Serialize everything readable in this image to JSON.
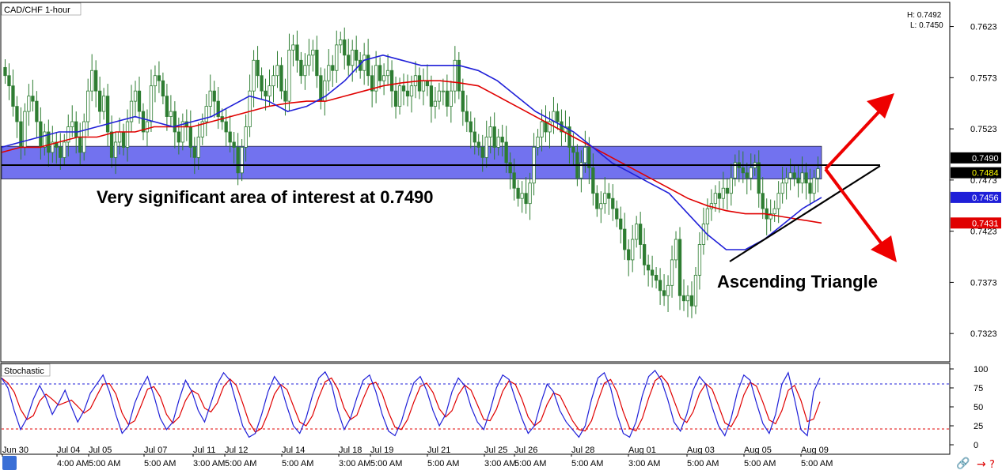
{
  "chart_data": {
    "type": "candlestick",
    "title": "CAD/CHF 1-hour",
    "high_label": "H: 0.7492",
    "low_label": "L: 0.7450",
    "price_ticks": [
      "0.7623",
      "0.7573",
      "0.7523",
      "0.7473",
      "0.7423",
      "0.7373",
      "0.7323"
    ],
    "price_tags": [
      {
        "text": "0.7490",
        "bg": "#000000",
        "fg": "#ffffff",
        "price": 0.749
      },
      {
        "text": "0.7484",
        "bg": "#000000",
        "fg": "#ffff00",
        "price": 0.7484
      },
      {
        "text": "0.7456",
        "bg": "#1f1fd8",
        "fg": "#ffffff",
        "price": 0.7456
      },
      {
        "text": "0.7431",
        "bg": "#e00000",
        "fg": "#ffffff",
        "price": 0.7431
      }
    ],
    "ylim": [
      0.73,
      0.7635
    ],
    "colors": {
      "candle": "#2e7d32",
      "ma_fast": "#1f1fd8",
      "ma_slow": "#e00000",
      "zone": "#6666ee",
      "arrow": "#ee0000"
    },
    "close_series": [
      0.7575,
      0.7565,
      0.7545,
      0.753,
      0.7505,
      0.754,
      0.7555,
      0.755,
      0.753,
      0.7505,
      0.752,
      0.75,
      0.751,
      0.7505,
      0.7495,
      0.751,
      0.7525,
      0.753,
      0.7515,
      0.75,
      0.753,
      0.756,
      0.758,
      0.756,
      0.754,
      0.7555,
      0.752,
      0.7495,
      0.751,
      0.752,
      0.7505,
      0.753,
      0.755,
      0.756,
      0.754,
      0.752,
      0.753,
      0.7565,
      0.7575,
      0.757,
      0.7555,
      0.7535,
      0.754,
      0.752,
      0.751,
      0.753,
      0.7525,
      0.7505,
      0.7495,
      0.7515,
      0.753,
      0.7545,
      0.756,
      0.755,
      0.7535,
      0.753,
      0.752,
      0.751,
      0.7505,
      0.748,
      0.7505,
      0.7525,
      0.756,
      0.759,
      0.7575,
      0.756,
      0.7555,
      0.7565,
      0.7575,
      0.7585,
      0.756,
      0.755,
      0.76,
      0.7605,
      0.759,
      0.7575,
      0.7585,
      0.7595,
      0.76,
      0.7575,
      0.755,
      0.757,
      0.7585,
      0.758,
      0.7605,
      0.761,
      0.7595,
      0.7585,
      0.76,
      0.759,
      0.758,
      0.7595,
      0.7575,
      0.756,
      0.7585,
      0.757,
      0.7575,
      0.758,
      0.756,
      0.7545,
      0.7565,
      0.756,
      0.7555,
      0.7565,
      0.7575,
      0.756,
      0.757,
      0.7565,
      0.7545,
      0.755,
      0.756,
      0.756,
      0.7545,
      0.756,
      0.759,
      0.756,
      0.754,
      0.753,
      0.752,
      0.751,
      0.7505,
      0.7495,
      0.7515,
      0.7525,
      0.7505,
      0.7515,
      0.751,
      0.749,
      0.748,
      0.7465,
      0.7455,
      0.746,
      0.745,
      0.747,
      0.7505,
      0.7515,
      0.753,
      0.752,
      0.753,
      0.754,
      0.753,
      0.752,
      0.7525,
      0.7505,
      0.75,
      0.7475,
      0.749,
      0.7505,
      0.7485,
      0.746,
      0.7445,
      0.745,
      0.746,
      0.7455,
      0.7445,
      0.7435,
      0.7425,
      0.7405,
      0.7395,
      0.7415,
      0.743,
      0.741,
      0.739,
      0.7385,
      0.738,
      0.7375,
      0.7365,
      0.736,
      0.737,
      0.7395,
      0.7415,
      0.736,
      0.7355,
      0.736,
      0.735,
      0.738,
      0.741,
      0.743,
      0.7445,
      0.745,
      0.746,
      0.7455,
      0.7465,
      0.746,
      0.7475,
      0.749,
      0.7485,
      0.748,
      0.7475,
      0.7485,
      0.749,
      0.746,
      0.7445,
      0.7435,
      0.744,
      0.7445,
      0.746,
      0.747,
      0.7475,
      0.748,
      0.7475,
      0.747,
      0.748,
      0.747,
      0.746,
      0.7475,
      0.7484
    ],
    "ma_fast_series": [
      0.7505,
      0.751,
      0.7515,
      0.752,
      0.752,
      0.7525,
      0.753,
      0.7535,
      0.753,
      0.7525,
      0.753,
      0.7535,
      0.7545,
      0.7555,
      0.755,
      0.754,
      0.7545,
      0.7555,
      0.757,
      0.759,
      0.7595,
      0.759,
      0.7585,
      0.7585,
      0.7585,
      0.758,
      0.757,
      0.7555,
      0.754,
      0.753,
      0.752,
      0.7505,
      0.749,
      0.748,
      0.747,
      0.746,
      0.744,
      0.742,
      0.7405,
      0.7405,
      0.7415,
      0.743,
      0.7445,
      0.7456
    ],
    "ma_slow_series": [
      0.75,
      0.7505,
      0.7505,
      0.751,
      0.7515,
      0.7515,
      0.752,
      0.752,
      0.7525,
      0.7525,
      0.7525,
      0.753,
      0.7535,
      0.754,
      0.7545,
      0.7548,
      0.755,
      0.755,
      0.7555,
      0.756,
      0.7565,
      0.7568,
      0.757,
      0.757,
      0.7568,
      0.7565,
      0.7555,
      0.7545,
      0.7535,
      0.7525,
      0.7515,
      0.7505,
      0.7495,
      0.7485,
      0.7475,
      0.7465,
      0.7455,
      0.7448,
      0.7443,
      0.744,
      0.744,
      0.7437,
      0.7434,
      0.7431
    ],
    "zone": {
      "from": 0.7474,
      "to": 0.7506
    },
    "resistance": 0.749,
    "stochastic": {
      "title": "Stochastic",
      "ticks": [
        "100",
        "75",
        "50",
        "25",
        "0"
      ],
      "levels": [
        20,
        80
      ],
      "ylim": [
        0,
        100
      ],
      "k_series": [
        88,
        75,
        45,
        20,
        35,
        60,
        78,
        62,
        40,
        55,
        72,
        50,
        30,
        45,
        68,
        80,
        92,
        70,
        40,
        15,
        25,
        55,
        75,
        90,
        65,
        35,
        20,
        30,
        60,
        85,
        70,
        45,
        30,
        55,
        80,
        95,
        85,
        55,
        25,
        10,
        15,
        40,
        70,
        90,
        78,
        50,
        25,
        15,
        35,
        65,
        88,
        96,
        80,
        45,
        20,
        35,
        62,
        85,
        92,
        70,
        40,
        18,
        12,
        30,
        58,
        82,
        90,
        72,
        45,
        25,
        40,
        70,
        88,
        78,
        50,
        30,
        20,
        45,
        75,
        92,
        86,
        60,
        35,
        15,
        25,
        55,
        80,
        70,
        45,
        30,
        20,
        10,
        25,
        60,
        88,
        95,
        75,
        40,
        15,
        10,
        30,
        65,
        90,
        98,
        85,
        60,
        30,
        18,
        40,
        72,
        90,
        80,
        50,
        25,
        12,
        35,
        70,
        92,
        85,
        55,
        28,
        15,
        40,
        80,
        95,
        60,
        20,
        12,
        70,
        88
      ]
    },
    "x_labels": [
      "Jun 30",
      "Jul 04 4:00 AM",
      "Jul 05 5:00 AM",
      "Jul 07 5:00 AM",
      "Jul 11 3:00 AM",
      "Jul 12 5:00 AM",
      "Jul 14 5:00 AM",
      "Jul 18 3:00 AM",
      "Jul 19 5:00 AM",
      "Jul 21 5:00 AM",
      "Jul 25 3:00 AM",
      "Jul 26 5:00 AM",
      "Jul 28 5:00 AM",
      "Aug 01 3:00 AM",
      "Aug 03 5:00 AM",
      "Aug 05 5:00 AM",
      "Aug 09 5:00 AM"
    ],
    "annotations": {
      "zone_text": "Very significant area of interest at 0.7490",
      "pattern_text": "Ascending Triangle"
    }
  }
}
